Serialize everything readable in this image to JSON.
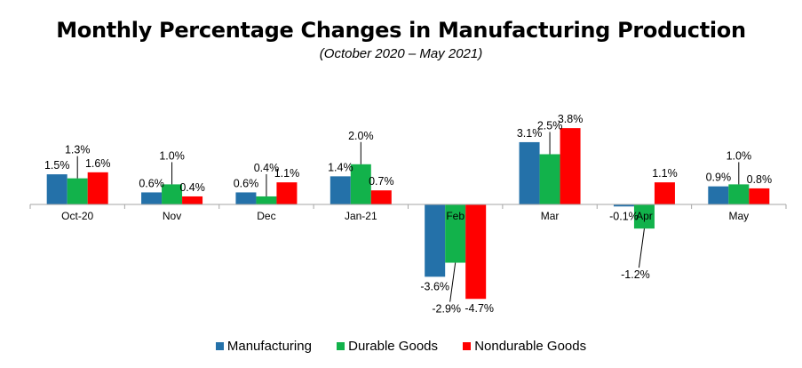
{
  "title": "Monthly Percentage Changes in Manufacturing Production",
  "subtitle": "(October 2020 – May 2021)",
  "colors": {
    "manufacturing": "#2471A9",
    "durable": "#12B24B",
    "nondurable": "#FF0000",
    "axis": "#A6A6A6"
  },
  "legend": [
    {
      "name": "Manufacturing",
      "color": "#2471A9"
    },
    {
      "name": "Durable Goods",
      "color": "#12B24B"
    },
    {
      "name": "Nondurable Goods",
      "color": "#FF0000"
    }
  ],
  "chart_data": {
    "type": "bar",
    "title": "Monthly Percentage Changes in Manufacturing Production",
    "subtitle": "(October 2020 – May 2021)",
    "categories": [
      "Oct-20",
      "Nov",
      "Dec",
      "Jan-21",
      "Feb",
      "Mar",
      "Apr",
      "May"
    ],
    "series": [
      {
        "name": "Manufacturing",
        "values": [
          1.5,
          0.6,
          0.6,
          1.4,
          -3.6,
          3.1,
          -0.1,
          0.9
        ],
        "labels": [
          "1.5%",
          "0.6%",
          "0.6%",
          "1.4%",
          "-3.6%",
          "3.1%",
          "-0.1%",
          "0.9%"
        ]
      },
      {
        "name": "Durable Goods",
        "values": [
          1.3,
          1.0,
          0.4,
          2.0,
          -2.9,
          2.5,
          -1.2,
          1.0
        ],
        "labels": [
          "1.3%",
          "1.0%",
          "0.4%",
          "2.0%",
          "-2.9%",
          "2.5%",
          "-1.2%",
          "1.0%"
        ]
      },
      {
        "name": "Nondurable Goods",
        "values": [
          1.6,
          0.4,
          1.1,
          0.7,
          -4.7,
          3.8,
          1.1,
          0.8
        ],
        "labels": [
          "1.6%",
          "0.4%",
          "1.1%",
          "0.7%",
          "-4.7%",
          "3.8%",
          "1.1%",
          "0.8%"
        ]
      }
    ],
    "xlabel": "",
    "ylabel": "",
    "ylim": [
      -4.7,
      3.8
    ],
    "grid": false,
    "legend_position": "bottom"
  }
}
